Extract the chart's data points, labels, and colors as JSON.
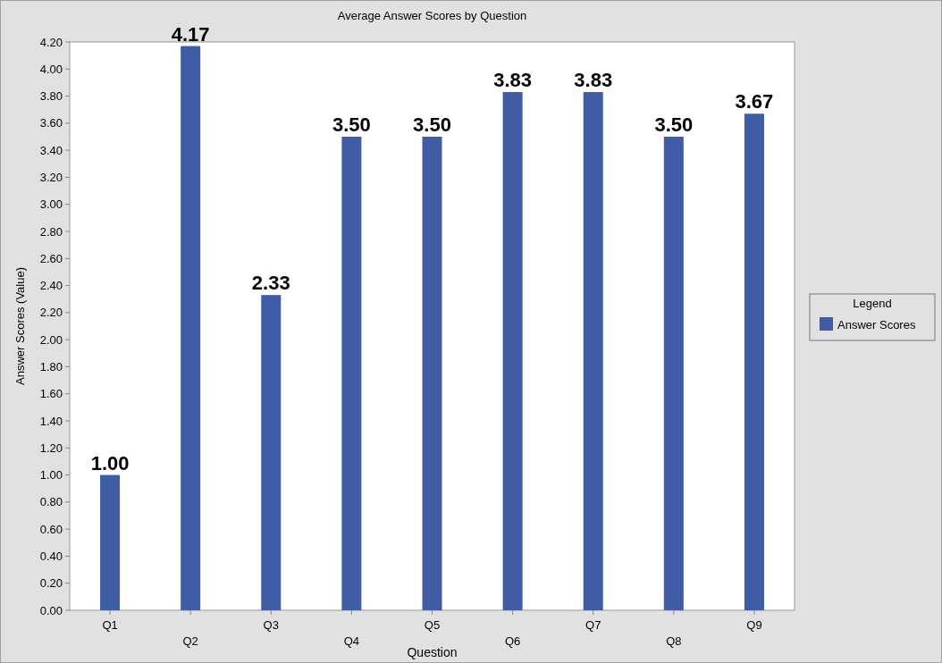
{
  "chart_data": {
    "type": "bar",
    "title": "Average Answer Scores by Question",
    "xlabel": "Question",
    "ylabel": "Answer Scores (Value)",
    "legend_title": "Legend",
    "categories": [
      "Q1",
      "Q2",
      "Q3",
      "Q4",
      "Q5",
      "Q6",
      "Q7",
      "Q8",
      "Q9"
    ],
    "series": [
      {
        "name": "Answer Scores",
        "color": "#3f5ca4",
        "values": [
          1.0,
          4.17,
          2.33,
          3.5,
          3.5,
          3.83,
          3.83,
          3.5,
          3.67
        ],
        "value_labels": [
          "1.00",
          "4.17",
          "2.33",
          "3.50",
          "3.50",
          "3.83",
          "3.83",
          "3.50",
          "3.67"
        ]
      }
    ],
    "ylim": [
      0,
      4.2
    ],
    "yticks": [
      {
        "value": 0,
        "label": "0.00"
      },
      {
        "value": 0.2,
        "label": "0.20"
      },
      {
        "value": 0.4,
        "label": "0.40"
      },
      {
        "value": 0.6,
        "label": "0.60"
      },
      {
        "value": 0.8,
        "label": "0.80"
      },
      {
        "value": 1,
        "label": "1.00"
      },
      {
        "value": 1.2,
        "label": "1.20"
      },
      {
        "value": 1.4,
        "label": "1.40"
      },
      {
        "value": 1.6,
        "label": "1.60"
      },
      {
        "value": 1.8,
        "label": "1.80"
      },
      {
        "value": 2,
        "label": "2.00"
      },
      {
        "value": 2.2,
        "label": "2.20"
      },
      {
        "value": 2.4,
        "label": "2.40"
      },
      {
        "value": 2.6,
        "label": "2.60"
      },
      {
        "value": 2.8,
        "label": "2.80"
      },
      {
        "value": 3,
        "label": "3.00"
      },
      {
        "value": 3.2,
        "label": "3.20"
      },
      {
        "value": 3.4,
        "label": "3.40"
      },
      {
        "value": 3.6,
        "label": "3.60"
      },
      {
        "value": 3.8,
        "label": "3.80"
      },
      {
        "value": 4,
        "label": "4.00"
      },
      {
        "value": 4.2,
        "label": "4.20"
      }
    ],
    "grid": false,
    "legend": "right"
  }
}
